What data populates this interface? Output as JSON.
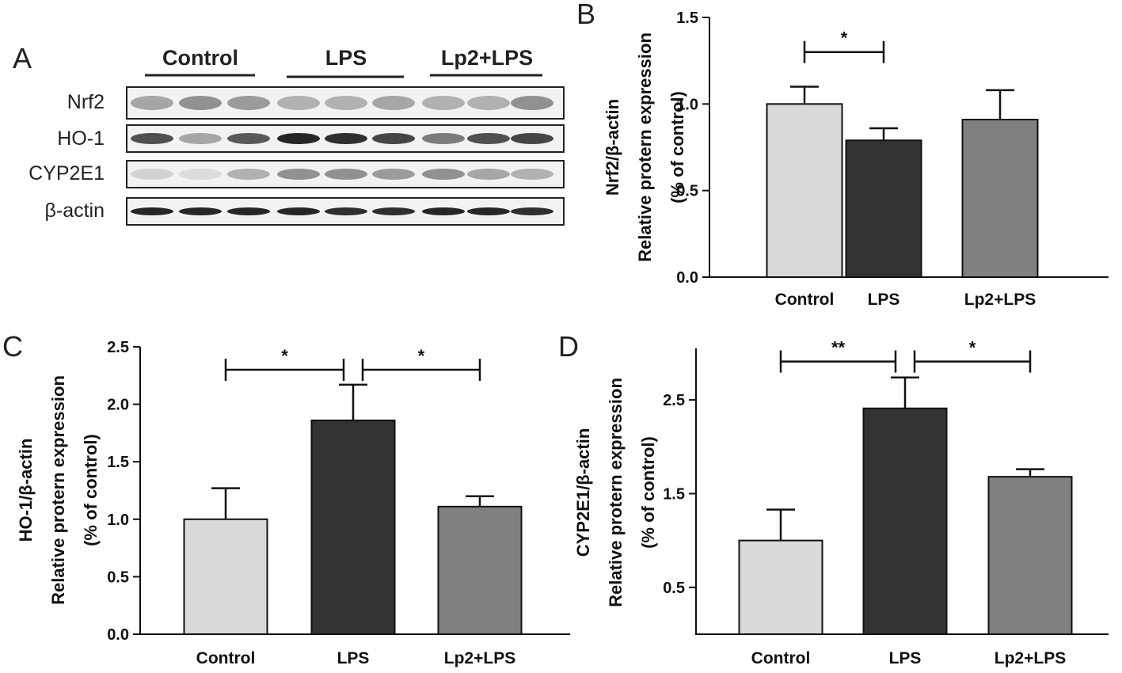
{
  "panel_a": {
    "letter": "A",
    "groups": [
      "Control",
      "LPS",
      "Lp2+LPS"
    ],
    "rows": [
      "Nrf2",
      "HO-1",
      "CYP2E1",
      "β-actin"
    ],
    "band_intensity": {
      "Nrf2": [
        0.35,
        0.45,
        0.4,
        0.3,
        0.3,
        0.35,
        0.3,
        0.3,
        0.45
      ],
      "HO-1": [
        0.75,
        0.35,
        0.7,
        0.95,
        0.9,
        0.8,
        0.55,
        0.75,
        0.8
      ],
      "CYP2E1": [
        0.15,
        0.1,
        0.3,
        0.45,
        0.45,
        0.4,
        0.45,
        0.35,
        0.3
      ],
      "β-actin": [
        0.95,
        0.95,
        0.95,
        0.95,
        0.9,
        0.9,
        0.95,
        0.95,
        0.9
      ]
    }
  },
  "chart_data": [
    {
      "id": "B",
      "letter": "B",
      "type": "bar",
      "categories": [
        "Control",
        "LPS",
        "Lp2+LPS"
      ],
      "values": [
        1.0,
        0.79,
        0.91
      ],
      "errors": [
        0.1,
        0.07,
        0.17
      ],
      "colors": [
        "#d9d9d9",
        "#333333",
        "#808080"
      ],
      "ylabel_lines": [
        "Nrf2/β-actin",
        "Relative protern expression",
        "(% of control)"
      ],
      "ylim": [
        0,
        1.5
      ],
      "yticks": [
        "0.0",
        "0.5",
        "1.0",
        "1.5"
      ],
      "significance": [
        {
          "from": 0,
          "to": 1,
          "label": "*",
          "y": 1.3
        }
      ]
    },
    {
      "id": "C",
      "letter": "C",
      "type": "bar",
      "categories": [
        "Control",
        "LPS",
        "Lp2+LPS"
      ],
      "values": [
        1.0,
        1.86,
        1.11
      ],
      "errors": [
        0.27,
        0.31,
        0.09
      ],
      "colors": [
        "#d9d9d9",
        "#333333",
        "#808080"
      ],
      "ylabel_lines": [
        "HO-1/β-actin",
        "Relative protern expression",
        "(% of control)"
      ],
      "ylim": [
        0,
        2.5
      ],
      "yticks": [
        "0.0",
        "0.5",
        "1.0",
        "1.5",
        "2.0",
        "2.5"
      ],
      "significance": [
        {
          "from": 0,
          "to": 1,
          "label": "*",
          "y": 2.3
        },
        {
          "from": 1,
          "to": 2,
          "label": "*",
          "y": 2.3
        }
      ]
    },
    {
      "id": "D",
      "letter": "D",
      "type": "bar",
      "categories": [
        "Control",
        "LPS",
        "Lp2+LPS"
      ],
      "values": [
        1.0,
        2.41,
        1.68
      ],
      "errors": [
        0.33,
        0.33,
        0.08
      ],
      "colors": [
        "#d9d9d9",
        "#333333",
        "#808080"
      ],
      "ylabel_lines": [
        "CYP2E1/β-actin",
        "Relative protern expression",
        "(% of control)"
      ],
      "ylim": [
        0,
        3.05
      ],
      "yticks": [
        "0.5",
        "1.5",
        "2.5"
      ],
      "significance": [
        {
          "from": 0,
          "to": 1,
          "label": "**",
          "y": 2.91
        },
        {
          "from": 1,
          "to": 2,
          "label": "*",
          "y": 2.91
        }
      ]
    }
  ]
}
